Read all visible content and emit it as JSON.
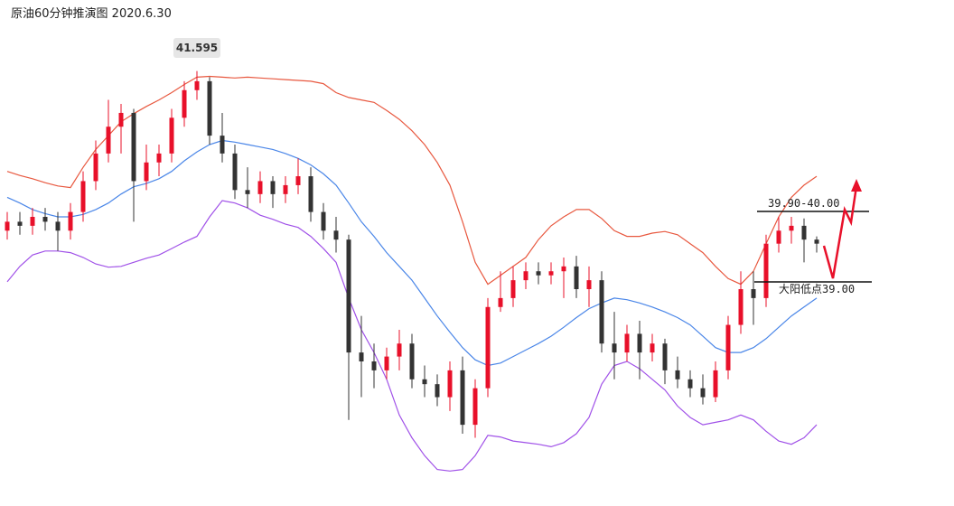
{
  "chart_data": {
    "type": "candlestick",
    "title": "原油60分钟推演图  2020.6.30",
    "ylim": [
      36.24,
      42.47
    ],
    "up_color": "#e8102a",
    "down_color": "#333333",
    "open": [
      39.63,
      39.74,
      39.69,
      39.8,
      39.74,
      39.63,
      39.86,
      40.24,
      40.58,
      40.91,
      41.08,
      40.24,
      40.47,
      40.58,
      41.02,
      41.36,
      41.47,
      40.8,
      40.58,
      40.13,
      40.08,
      40.24,
      40.08,
      40.19,
      40.3,
      39.86,
      39.63,
      39.52,
      38.13,
      38.02,
      37.91,
      38.08,
      38.24,
      37.8,
      37.74,
      37.58,
      37.91,
      37.24,
      37.69,
      38.69,
      38.8,
      39.02,
      39.13,
      39.08,
      39.13,
      39.19,
      38.91,
      39.02,
      38.24,
      38.13,
      38.36,
      38.13,
      38.24,
      37.91,
      37.8,
      37.69,
      37.58,
      37.91,
      38.47,
      38.91,
      38.8,
      39.47,
      39.63,
      39.69,
      39.52
    ],
    "high": [
      39.86,
      39.86,
      39.91,
      39.91,
      39.86,
      39.97,
      40.36,
      40.74,
      41.24,
      41.19,
      41.13,
      40.69,
      40.69,
      41.13,
      41.47,
      41.595,
      41.52,
      41.08,
      40.69,
      40.41,
      40.36,
      40.3,
      40.3,
      40.52,
      40.41,
      39.97,
      39.8,
      39.58,
      38.58,
      38.24,
      38.19,
      38.41,
      38.36,
      37.97,
      37.86,
      38.02,
      38.08,
      37.8,
      38.8,
      39.13,
      39.19,
      39.24,
      39.24,
      39.24,
      39.3,
      39.32,
      39.19,
      39.13,
      38.63,
      38.47,
      38.52,
      38.36,
      38.3,
      38.08,
      37.91,
      37.86,
      38.02,
      38.58,
      39.13,
      39.13,
      39.58,
      39.8,
      39.8,
      39.78,
      39.56
    ],
    "low": [
      39.52,
      39.58,
      39.58,
      39.63,
      39.38,
      39.52,
      39.74,
      40.13,
      40.47,
      40.58,
      39.74,
      40.13,
      40.3,
      40.47,
      40.91,
      41.24,
      40.69,
      40.47,
      40.02,
      39.91,
      39.97,
      39.91,
      39.97,
      40.08,
      39.74,
      39.52,
      39.36,
      37.3,
      37.58,
      37.69,
      37.8,
      37.91,
      37.69,
      37.58,
      37.47,
      37.41,
      37.13,
      37.08,
      37.58,
      38.63,
      38.69,
      38.91,
      38.97,
      38.97,
      38.8,
      38.8,
      38.69,
      38.13,
      37.8,
      38.02,
      37.8,
      38.02,
      37.74,
      37.69,
      37.58,
      37.49,
      37.52,
      37.8,
      38.36,
      38.47,
      38.69,
      39.36,
      39.47,
      39.24,
      39.36
    ],
    "close": [
      39.74,
      39.69,
      39.8,
      39.74,
      39.63,
      39.86,
      40.24,
      40.58,
      40.91,
      41.08,
      40.24,
      40.47,
      40.58,
      41.02,
      41.36,
      41.47,
      40.8,
      40.58,
      40.13,
      40.08,
      40.24,
      40.08,
      40.19,
      40.3,
      39.86,
      39.63,
      39.52,
      38.13,
      38.02,
      37.91,
      38.08,
      38.24,
      37.8,
      37.74,
      37.58,
      37.91,
      37.24,
      37.69,
      38.69,
      38.8,
      39.02,
      39.13,
      39.08,
      39.13,
      39.19,
      38.91,
      39.02,
      38.24,
      38.13,
      38.36,
      38.13,
      38.24,
      37.91,
      37.8,
      37.69,
      37.58,
      37.91,
      38.47,
      38.91,
      38.8,
      39.47,
      39.63,
      39.69,
      39.52,
      39.47
    ],
    "bands": [
      {
        "color": "#e8583f",
        "values": [
          40.36,
          40.31,
          40.27,
          40.22,
          40.18,
          40.16,
          40.41,
          40.63,
          40.8,
          40.97,
          41.07,
          41.16,
          41.24,
          41.33,
          41.43,
          41.52,
          41.53,
          41.52,
          41.51,
          41.52,
          41.51,
          41.5,
          41.49,
          41.48,
          41.47,
          41.44,
          41.33,
          41.27,
          41.24,
          41.21,
          41.11,
          41.0,
          40.86,
          40.69,
          40.47,
          40.19,
          39.74,
          39.24,
          38.97,
          39.08,
          39.19,
          39.3,
          39.52,
          39.69,
          39.8,
          39.89,
          39.89,
          39.78,
          39.63,
          39.56,
          39.56,
          39.6,
          39.62,
          39.58,
          39.47,
          39.36,
          39.19,
          39.04,
          38.97,
          39.13,
          39.47,
          39.8,
          40.04,
          40.19,
          40.3
        ]
      },
      {
        "color": "#4a86e8",
        "values": [
          40.04,
          39.97,
          39.89,
          39.84,
          39.8,
          39.8,
          39.83,
          39.89,
          39.97,
          40.08,
          40.17,
          40.21,
          40.27,
          40.36,
          40.49,
          40.6,
          40.69,
          40.74,
          40.72,
          40.69,
          40.66,
          40.63,
          40.58,
          40.52,
          40.44,
          40.33,
          40.19,
          39.97,
          39.74,
          39.56,
          39.36,
          39.19,
          39.02,
          38.8,
          38.58,
          38.38,
          38.19,
          38.04,
          37.97,
          38.0,
          38.08,
          38.16,
          38.24,
          38.33,
          38.44,
          38.56,
          38.67,
          38.74,
          38.8,
          38.78,
          38.74,
          38.69,
          38.63,
          38.56,
          38.47,
          38.33,
          38.19,
          38.13,
          38.13,
          38.19,
          38.3,
          38.44,
          38.58,
          38.69,
          38.8
        ]
      },
      {
        "color": "#a051e8",
        "values": [
          39.0,
          39.19,
          39.33,
          39.38,
          39.38,
          39.36,
          39.3,
          39.22,
          39.18,
          39.19,
          39.24,
          39.29,
          39.33,
          39.41,
          39.49,
          39.56,
          39.8,
          40.0,
          39.97,
          39.91,
          39.82,
          39.77,
          39.71,
          39.67,
          39.56,
          39.41,
          39.24,
          38.8,
          38.41,
          38.13,
          37.8,
          37.36,
          37.08,
          36.86,
          36.69,
          36.67,
          36.69,
          36.86,
          37.11,
          37.09,
          37.04,
          37.02,
          37.0,
          36.97,
          37.02,
          37.13,
          37.33,
          37.74,
          37.97,
          38.02,
          37.93,
          37.8,
          37.67,
          37.47,
          37.33,
          37.24,
          37.27,
          37.3,
          37.36,
          37.3,
          37.16,
          37.04,
          37.0,
          37.08,
          37.24
        ]
      }
    ],
    "annotations": {
      "peak_label": "41.595",
      "resistance_label": "39.90-40.00",
      "support_label": "大阳低点39.00"
    }
  }
}
